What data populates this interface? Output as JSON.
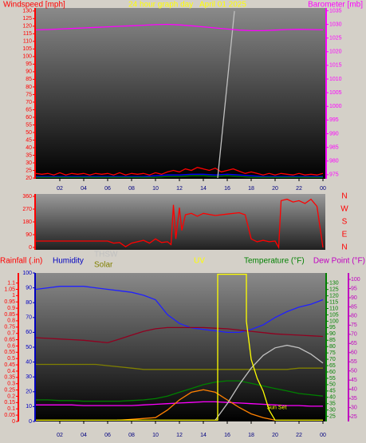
{
  "chart_data": [
    {
      "type": "line",
      "title": "24 hour graph day   April 01 2025",
      "title_color": "#ffff00",
      "ylabel": "Windspeed [mph]",
      "ycolor": "#ff0000",
      "y2label": "Barometer [mb]",
      "y2color": "#ff00ff",
      "xlim": [
        0,
        24.2
      ],
      "xticks": [
        {
          "value": 2,
          "label": "02"
        },
        {
          "value": 4,
          "label": "04"
        },
        {
          "value": 6,
          "label": "06"
        },
        {
          "value": 8,
          "label": "08"
        },
        10,
        12,
        14,
        16,
        18,
        20,
        22,
        {
          "value": 24,
          "label": "00"
        }
      ],
      "ylim": [
        19.5,
        132
      ],
      "yticks": [
        20,
        25,
        30,
        35,
        40,
        45,
        50,
        55,
        60,
        65,
        70,
        75,
        80,
        85,
        90,
        95,
        100,
        105,
        110,
        115,
        120,
        125,
        130
      ],
      "y2lim": [
        973.5,
        1036
      ],
      "y2ticks": [
        975,
        980,
        985,
        990,
        995,
        1000,
        1005,
        1010,
        1015,
        1020,
        1025,
        1030,
        1035
      ],
      "series": [
        {
          "color": "#ff0000",
          "x": [
            0,
            0.5,
            1,
            1.5,
            2,
            2.5,
            3,
            3.5,
            4,
            4.5,
            5,
            5.5,
            6,
            6.5,
            7,
            7.5,
            8,
            8.5,
            9,
            9.5,
            10,
            10.5,
            11,
            11.5,
            12,
            12.5,
            13,
            13.5,
            14,
            14.5,
            15,
            15.5,
            16,
            16.5,
            17,
            17.5,
            18,
            18.5,
            19,
            19.5,
            20,
            20.5,
            21,
            21.5,
            22,
            22.5,
            23,
            23.5,
            24
          ],
          "values": [
            23,
            22.5,
            23,
            22,
            23.5,
            22,
            23,
            22.5,
            23,
            22,
            23,
            22.5,
            23,
            22,
            23.5,
            22,
            23,
            22.5,
            23,
            22,
            23.5,
            22.5,
            24,
            25,
            24,
            26,
            25,
            27,
            26,
            25,
            26.5,
            24,
            25,
            26,
            24.5,
            23,
            24,
            23,
            22,
            23,
            22,
            23,
            22.5,
            22,
            23,
            22,
            22.5,
            22,
            23
          ]
        },
        {
          "color": "#0000ff",
          "x": [
            0,
            1,
            2,
            3,
            4,
            5,
            6,
            7,
            8,
            9,
            10,
            11,
            12,
            13,
            14,
            15,
            16,
            17,
            18,
            19,
            20,
            21,
            22,
            23,
            24
          ],
          "values": [
            21,
            21,
            21,
            21,
            21,
            21,
            21,
            21,
            21,
            21,
            21.5,
            22,
            22,
            22.5,
            22.5,
            22,
            22.5,
            22,
            21.5,
            21,
            21,
            21,
            21,
            21,
            21
          ]
        },
        {
          "color": "#008000",
          "x": [
            0,
            1,
            2,
            3,
            4,
            5,
            6,
            7,
            8,
            9,
            10,
            11,
            12,
            13,
            14,
            15,
            16,
            17,
            18,
            19,
            20,
            21,
            22,
            23,
            24
          ],
          "values": [
            20.5,
            20.5,
            20.5,
            20.5,
            20.5,
            20.5,
            20.5,
            20.5,
            20.5,
            20.5,
            20.5,
            21,
            21,
            21.5,
            21.5,
            21,
            21.5,
            21,
            20.5,
            20.5,
            20.5,
            20.5,
            20.5,
            20.5,
            20.5
          ]
        },
        {
          "color": "#c0c0c0",
          "x": [
            15.2,
            16.6
          ],
          "values": [
            20,
            130
          ]
        },
        {
          "color": "#ff00ff",
          "axis": "y2",
          "x": [
            0,
            1,
            2,
            3,
            4,
            5,
            6,
            7,
            8,
            9,
            10,
            11,
            12,
            13,
            14,
            15,
            16,
            17,
            18,
            19,
            20,
            21,
            22,
            23,
            24
          ],
          "values": [
            1028,
            1028.1,
            1028.3,
            1028.5,
            1028.7,
            1028.9,
            1029.1,
            1029.3,
            1029.5,
            1029.7,
            1029.9,
            1030,
            1029.8,
            1029.5,
            1029.1,
            1028.7,
            1028.3,
            1027.9,
            1027.7,
            1027.7,
            1027.9,
            1028.1,
            1028.2,
            1028.1,
            1028
          ]
        }
      ]
    },
    {
      "type": "line",
      "ycolor": "#ff0000",
      "y2color": "#ff0000",
      "xlim": [
        0,
        24.2
      ],
      "ylim": [
        -17,
        377
      ],
      "yticks": [
        0,
        90,
        180,
        270,
        360
      ],
      "y2lim": [
        -17,
        377
      ],
      "y2ticks": [
        {
          "value": 0,
          "label": "N"
        },
        {
          "value": 90,
          "label": "E"
        },
        {
          "value": 180,
          "label": "S"
        },
        {
          "value": 270,
          "label": "W"
        },
        {
          "value": 360,
          "label": "N"
        }
      ],
      "series": [
        {
          "color": "#ff0000",
          "x": [
            0,
            0.5,
            6,
            6.5,
            7,
            7.5,
            8,
            9,
            9.5,
            10,
            10.5,
            11,
            11.3,
            11.5,
            11.7,
            12,
            12.2,
            12.5,
            13,
            13.5,
            14,
            15,
            16,
            17,
            17.5,
            18,
            18.5,
            19,
            19.5,
            20,
            20.3,
            20.5,
            21,
            21.5,
            22,
            22.5,
            23,
            23.5,
            24
          ],
          "values": [
            45,
            45,
            45,
            30,
            35,
            5,
            30,
            50,
            30,
            60,
            35,
            40,
            20,
            300,
            60,
            280,
            120,
            230,
            240,
            220,
            240,
            225,
            235,
            245,
            230,
            60,
            40,
            50,
            40,
            45,
            0,
            330,
            340,
            320,
            330,
            310,
            340,
            290,
            0
          ]
        }
      ]
    },
    {
      "type": "line",
      "xlim": [
        0,
        24.2
      ],
      "xticks": [
        {
          "value": 2,
          "label": "02"
        },
        {
          "value": 4,
          "label": "04"
        },
        {
          "value": 6,
          "label": "06"
        },
        {
          "value": 8,
          "label": "08"
        },
        10,
        12,
        14,
        16,
        18,
        20,
        22,
        {
          "value": 24,
          "label": "00"
        }
      ],
      "ylabel": "Rainfall (.in)",
      "ycolor": "#ff0000",
      "ylim": [
        0,
        1.18
      ],
      "yticks": [
        0,
        0.05,
        0.1,
        0.15,
        0.2,
        0.25,
        0.3,
        0.35,
        0.4,
        0.45,
        0.5,
        0.55,
        0.6,
        0.65,
        0.7,
        0.75,
        0.8,
        0.85,
        0.9,
        0.95,
        1,
        1.05,
        1.1
      ],
      "y2label": "Humidity",
      "y2color": "#0000c0",
      "y2lim": [
        0,
        100
      ],
      "y2ticks": [
        0,
        10,
        20,
        30,
        40,
        50,
        60,
        70,
        80,
        90,
        100
      ],
      "y3label": "Temperature (°F)",
      "y3color": "#008000",
      "y3lim": [
        21,
        138
      ],
      "y3ticks": [
        25,
        30,
        35,
        40,
        45,
        50,
        55,
        60,
        65,
        70,
        75,
        80,
        85,
        90,
        95,
        100,
        105,
        110,
        115,
        120,
        125,
        130
      ],
      "y4label": "Dew Point (°F)",
      "y4color": "#c000c0",
      "y4lim": [
        22.4,
        103.5
      ],
      "y4ticks": [
        25,
        30,
        35,
        40,
        45,
        50,
        55,
        60,
        65,
        70,
        75,
        80,
        85,
        90,
        95,
        100
      ],
      "annotations": [
        {
          "text": "Sun Set",
          "x": 19.3,
          "y": 32,
          "color": "#ffff00"
        }
      ],
      "series": [
        {
          "color": "#2020ff",
          "axis": "y2",
          "x": [
            0,
            1,
            2,
            3,
            4,
            5,
            6,
            7,
            8,
            9,
            10,
            11,
            12,
            13,
            14,
            15,
            16,
            17,
            18,
            19,
            20,
            21,
            22,
            23,
            24
          ],
          "values": [
            89,
            90,
            91,
            91,
            91,
            90,
            89,
            88,
            87,
            85,
            82,
            72,
            66,
            63,
            62,
            61,
            60,
            60,
            62,
            65,
            70,
            74,
            77,
            79,
            82
          ]
        },
        {
          "color": "#900020",
          "axis": "y3",
          "x": [
            0,
            1,
            2,
            3,
            4,
            5,
            6,
            7,
            8,
            9,
            10,
            11,
            12,
            13,
            14,
            15,
            16,
            17,
            18,
            19,
            20,
            21,
            22,
            23,
            24
          ],
          "values": [
            87,
            86.5,
            86,
            85.5,
            85,
            84,
            83,
            86,
            89,
            92,
            94,
            95,
            95,
            95,
            95,
            94.5,
            94,
            93,
            92,
            91,
            90,
            89.5,
            89,
            88.5,
            88
          ]
        },
        {
          "name": "Solar",
          "color": "#808000",
          "axis": "y3",
          "x": [
            0,
            1,
            2,
            3,
            4,
            5,
            6,
            7,
            8,
            9,
            10,
            11,
            12,
            13,
            14,
            15,
            16,
            17,
            18,
            19,
            20,
            21,
            22,
            23,
            24
          ],
          "values": [
            66,
            66,
            66,
            66,
            66,
            66,
            65,
            64,
            63,
            62,
            62,
            62,
            62,
            62,
            62,
            62,
            62,
            62,
            62,
            62,
            62,
            62,
            63,
            63,
            63
          ]
        },
        {
          "color": "#008000",
          "axis": "y3",
          "x": [
            0,
            1,
            2,
            3,
            4,
            5,
            6,
            7,
            8,
            9,
            10,
            11,
            12,
            13,
            14,
            15,
            16,
            17,
            18,
            19,
            20,
            21,
            22,
            23,
            24
          ],
          "values": [
            38,
            38,
            37.5,
            37.5,
            37,
            37,
            37,
            37,
            37.5,
            38,
            39,
            41,
            44,
            47,
            50,
            52,
            53,
            53,
            51,
            49,
            47,
            45,
            43,
            42,
            41
          ]
        },
        {
          "color": "#ff00ff",
          "axis": "y3",
          "x": [
            0,
            1,
            2,
            3,
            4,
            5,
            6,
            7,
            8,
            9,
            10,
            11,
            12,
            13,
            14,
            15,
            16,
            17,
            18,
            19,
            20,
            21,
            22,
            23,
            24
          ],
          "values": [
            34,
            34,
            34,
            34,
            33.5,
            33.5,
            33.5,
            33.5,
            33.5,
            34,
            34.5,
            35,
            35.5,
            36,
            36.5,
            36.5,
            36,
            35.5,
            35,
            34.5,
            34,
            33.5,
            33.5,
            33,
            33
          ]
        },
        {
          "color": "#ff8000",
          "axis": "y3",
          "x": [
            6.8,
            7,
            10,
            11,
            12,
            13,
            14,
            15,
            16,
            17,
            18,
            19,
            20
          ],
          "values": [
            22,
            22,
            24,
            30,
            38,
            44,
            46,
            44,
            38,
            32,
            27,
            24,
            22
          ]
        },
        {
          "name": "THSW",
          "color": "#c0c0c0",
          "axis": "y3",
          "x": [
            15,
            16,
            17,
            18,
            19,
            20,
            21,
            22,
            23,
            24
          ],
          "values": [
            22,
            35,
            50,
            63,
            73,
            79,
            81,
            79,
            74,
            67
          ]
        },
        {
          "name": "UV",
          "color": "#ffff00",
          "axis": "y3",
          "x": [
            0,
            15.2,
            15.2,
            17.6,
            17.6,
            18,
            18.5,
            19,
            19.5,
            20,
            24
          ],
          "values": [
            22,
            22,
            137,
            137,
            100,
            70,
            55,
            45,
            30,
            22,
            22
          ]
        }
      ]
    }
  ]
}
